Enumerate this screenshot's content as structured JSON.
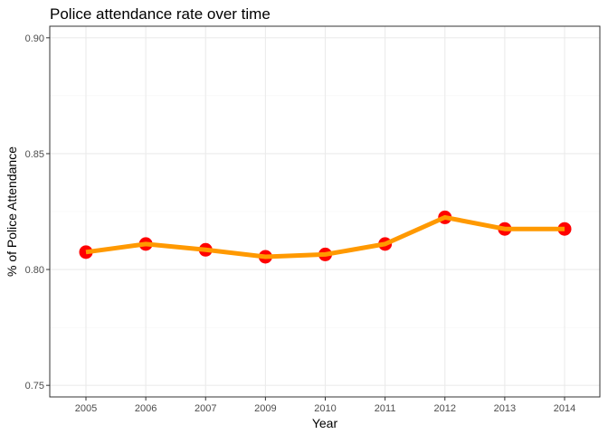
{
  "chart_data": {
    "type": "line",
    "title": "Police attendance rate over time",
    "xlabel": "Year",
    "ylabel": "% of Police Attendance",
    "categories": [
      "2005",
      "2006",
      "2007",
      "2009",
      "2010",
      "2011",
      "2012",
      "2013",
      "2014"
    ],
    "series": [
      {
        "values": [
          0.8075,
          0.811,
          0.8085,
          0.8055,
          0.8065,
          0.811,
          0.8225,
          0.8175,
          0.8175
        ]
      }
    ],
    "ylim": [
      0.745,
      0.905
    ],
    "yticks": [
      0.75,
      0.8,
      0.85,
      0.9
    ],
    "ytick_labels": [
      "0.75",
      "0.80",
      "0.85",
      "0.90"
    ],
    "grid": true,
    "line_color": "#FF9900",
    "point_color": "#FF0000",
    "background_color": "#FFFFFF"
  }
}
